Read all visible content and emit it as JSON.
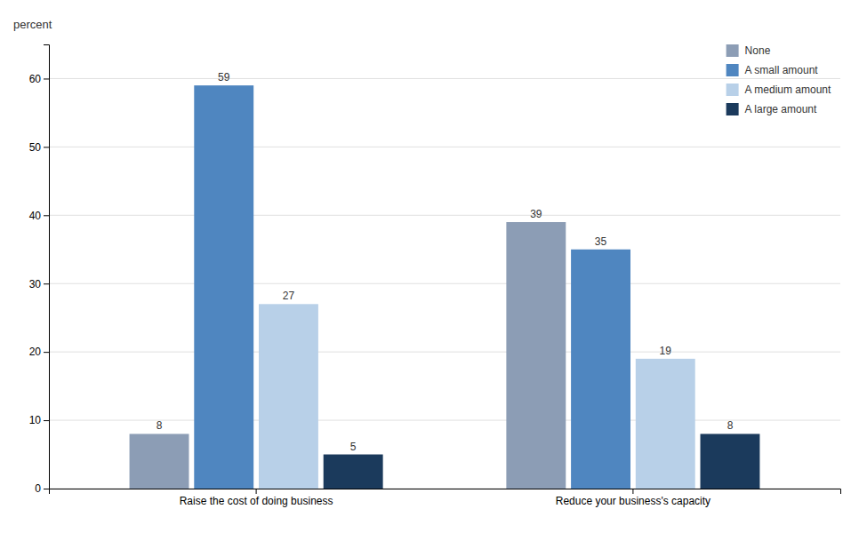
{
  "chart_data": {
    "type": "bar",
    "categories": [
      "Raise the cost of doing business",
      "Reduce your business's capacity"
    ],
    "series": [
      {
        "name": "None",
        "color": "#8c9db5",
        "values": [
          8,
          39
        ]
      },
      {
        "name": "A small amount",
        "color": "#4f86c0",
        "values": [
          59,
          35
        ]
      },
      {
        "name": "A medium amount",
        "color": "#b8d0e8",
        "values": [
          27,
          19
        ]
      },
      {
        "name": "A large amount",
        "color": "#1b3a5c",
        "values": [
          5,
          8
        ]
      }
    ],
    "ylabel": "percent",
    "ylim": [
      0,
      65
    ],
    "yticks": [
      0,
      10,
      20,
      30,
      40,
      50,
      60
    ],
    "grid": true,
    "legend": "upper right",
    "data_labels": true
  }
}
